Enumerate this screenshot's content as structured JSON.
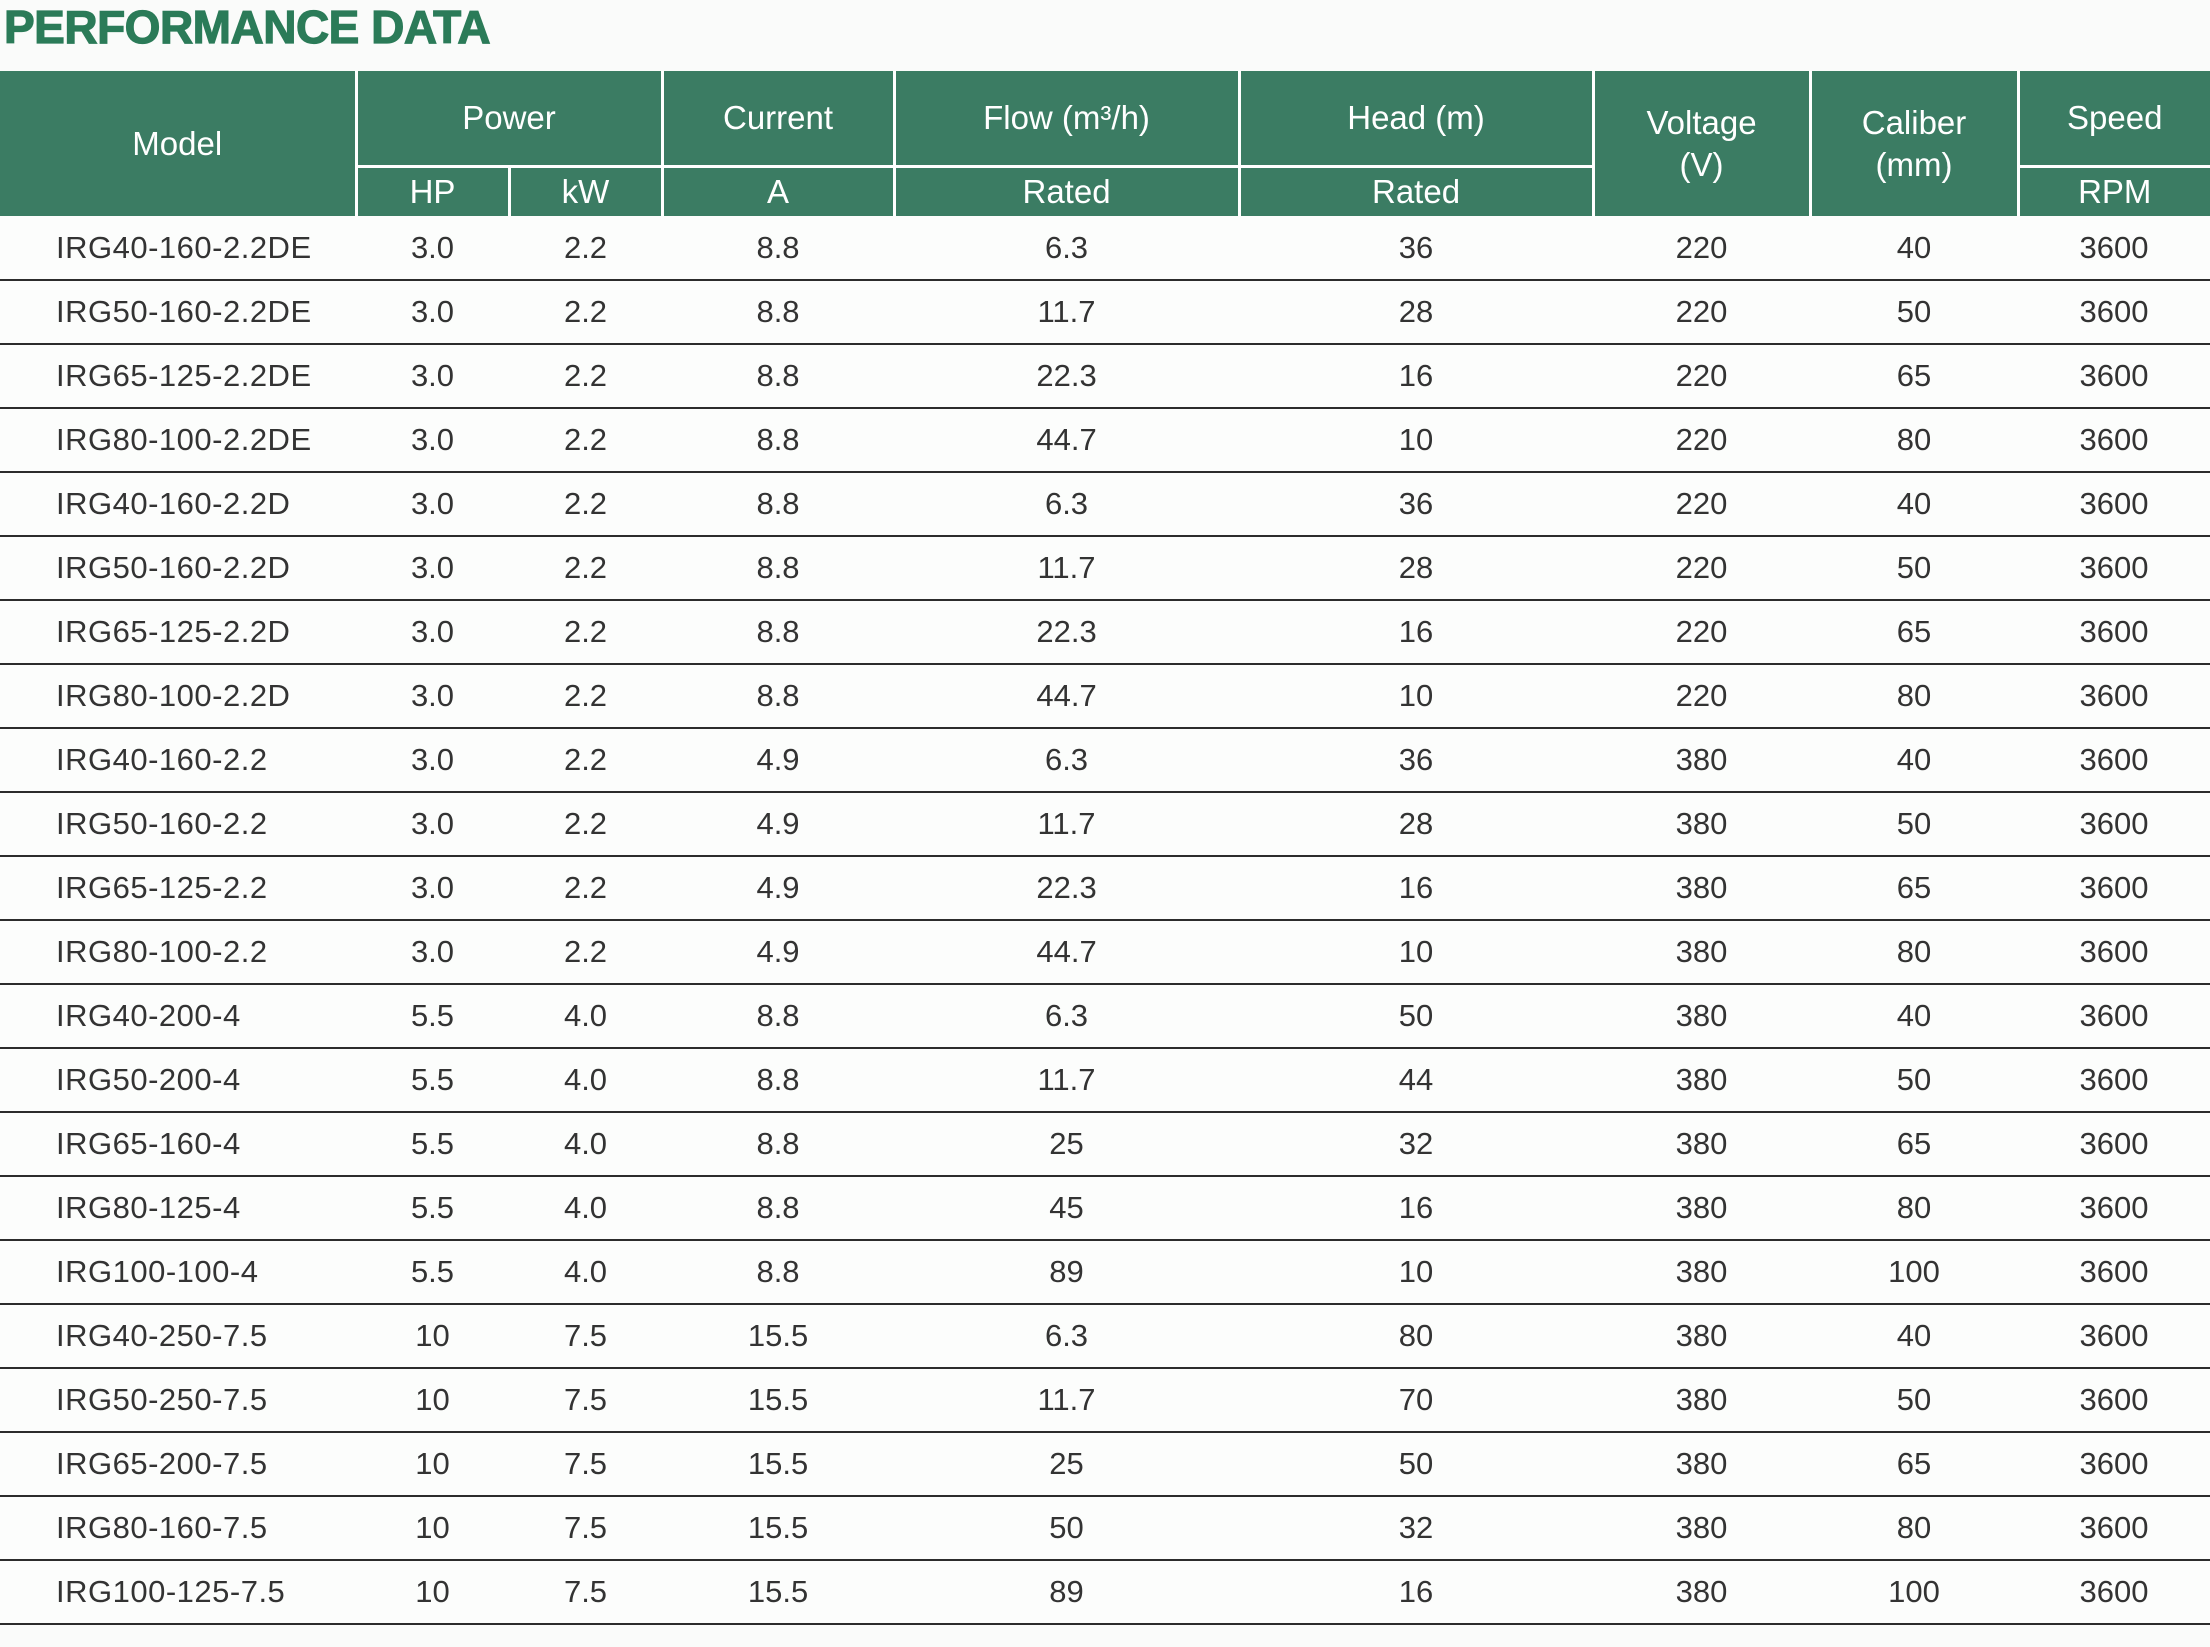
{
  "page_title": "PERFORMANCE DATA",
  "colors": {
    "header_green": "#3b7c63",
    "title_green": "#2b7b58",
    "row_divider": "#2c2c2c",
    "header_text": "#ffffff"
  },
  "table": {
    "header": {
      "model": "Model",
      "power": "Power",
      "power_hp": "HP",
      "power_kw": "kW",
      "current": "Current",
      "current_a": "A",
      "flow": "Flow (m³/h)",
      "flow_sub": "Rated",
      "head": "Head (m)",
      "head_sub": "Rated",
      "voltage_line1": "Voltage",
      "voltage_line2": "(V)",
      "caliber_line1": "Caliber",
      "caliber_line2": "(mm)",
      "speed": "Speed",
      "speed_sub": "RPM"
    },
    "columns_keys": [
      "model",
      "power-hp",
      "power-kw",
      "current-a",
      "flow-rated",
      "head-rated",
      "voltage",
      "caliber",
      "speed-rpm"
    ],
    "rows": [
      [
        "IRG40-160-2.2DE",
        "3.0",
        "2.2",
        "8.8",
        "6.3",
        "36",
        "220",
        "40",
        "3600"
      ],
      [
        "IRG50-160-2.2DE",
        "3.0",
        "2.2",
        "8.8",
        "11.7",
        "28",
        "220",
        "50",
        "3600"
      ],
      [
        "IRG65-125-2.2DE",
        "3.0",
        "2.2",
        "8.8",
        "22.3",
        "16",
        "220",
        "65",
        "3600"
      ],
      [
        "IRG80-100-2.2DE",
        "3.0",
        "2.2",
        "8.8",
        "44.7",
        "10",
        "220",
        "80",
        "3600"
      ],
      [
        "IRG40-160-2.2D",
        "3.0",
        "2.2",
        "8.8",
        "6.3",
        "36",
        "220",
        "40",
        "3600"
      ],
      [
        "IRG50-160-2.2D",
        "3.0",
        "2.2",
        "8.8",
        "11.7",
        "28",
        "220",
        "50",
        "3600"
      ],
      [
        "IRG65-125-2.2D",
        "3.0",
        "2.2",
        "8.8",
        "22.3",
        "16",
        "220",
        "65",
        "3600"
      ],
      [
        "IRG80-100-2.2D",
        "3.0",
        "2.2",
        "8.8",
        "44.7",
        "10",
        "220",
        "80",
        "3600"
      ],
      [
        "IRG40-160-2.2",
        "3.0",
        "2.2",
        "4.9",
        "6.3",
        "36",
        "380",
        "40",
        "3600"
      ],
      [
        "IRG50-160-2.2",
        "3.0",
        "2.2",
        "4.9",
        "11.7",
        "28",
        "380",
        "50",
        "3600"
      ],
      [
        "IRG65-125-2.2",
        "3.0",
        "2.2",
        "4.9",
        "22.3",
        "16",
        "380",
        "65",
        "3600"
      ],
      [
        "IRG80-100-2.2",
        "3.0",
        "2.2",
        "4.9",
        "44.7",
        "10",
        "380",
        "80",
        "3600"
      ],
      [
        "IRG40-200-4",
        "5.5",
        "4.0",
        "8.8",
        "6.3",
        "50",
        "380",
        "40",
        "3600"
      ],
      [
        "IRG50-200-4",
        "5.5",
        "4.0",
        "8.8",
        "11.7",
        "44",
        "380",
        "50",
        "3600"
      ],
      [
        "IRG65-160-4",
        "5.5",
        "4.0",
        "8.8",
        "25",
        "32",
        "380",
        "65",
        "3600"
      ],
      [
        "IRG80-125-4",
        "5.5",
        "4.0",
        "8.8",
        "45",
        "16",
        "380",
        "80",
        "3600"
      ],
      [
        "IRG100-100-4",
        "5.5",
        "4.0",
        "8.8",
        "89",
        "10",
        "380",
        "100",
        "3600"
      ],
      [
        "IRG40-250-7.5",
        "10",
        "7.5",
        "15.5",
        "6.3",
        "80",
        "380",
        "40",
        "3600"
      ],
      [
        "IRG50-250-7.5",
        "10",
        "7.5",
        "15.5",
        "11.7",
        "70",
        "380",
        "50",
        "3600"
      ],
      [
        "IRG65-200-7.5",
        "10",
        "7.5",
        "15.5",
        "25",
        "50",
        "380",
        "65",
        "3600"
      ],
      [
        "IRG80-160-7.5",
        "10",
        "7.5",
        "15.5",
        "50",
        "32",
        "380",
        "80",
        "3600"
      ],
      [
        "IRG100-125-7.5",
        "10",
        "7.5",
        "15.5",
        "89",
        "16",
        "380",
        "100",
        "3600"
      ]
    ]
  }
}
